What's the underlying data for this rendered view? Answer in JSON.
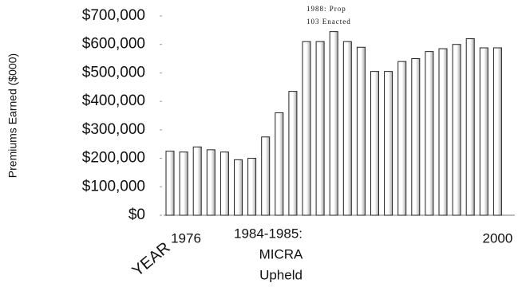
{
  "chart_data": {
    "type": "bar",
    "y_label": "Premiums Earned ($000)",
    "x_label": "YEAR",
    "annotations": [
      "1988: Prop",
      "103 Enacted",
      "1984-1985:",
      "MICRA",
      "Upheld"
    ],
    "categories": [
      "1976",
      null,
      null,
      null,
      null,
      null,
      null,
      null,
      null,
      null,
      null,
      null,
      null,
      null,
      null,
      null,
      null,
      null,
      null,
      null,
      null,
      null,
      null,
      null,
      "2000"
    ],
    "values": [
      225000,
      222000,
      240000,
      230000,
      222000,
      195000,
      200000,
      275000,
      360000,
      435000,
      610000,
      610000,
      645000,
      610000,
      590000,
      505000,
      505000,
      540000,
      550000,
      575000,
      585000,
      600000,
      620000,
      588000,
      588000
    ],
    "color": "#ffffff",
    "ylim": [
      0,
      700000
    ],
    "yticks": [
      {
        "value": 0,
        "label": "$0"
      },
      {
        "value": 100000,
        "label": "$100,000"
      },
      {
        "value": 200000,
        "label": "$200,000"
      },
      {
        "value": 300000,
        "label": "$300,000"
      },
      {
        "value": 400000,
        "label": "$400,000"
      },
      {
        "value": 500000,
        "label": "$500,000"
      },
      {
        "value": 600000,
        "label": "$600,000"
      },
      {
        "value": 700000,
        "label": "$700,000"
      }
    ]
  }
}
